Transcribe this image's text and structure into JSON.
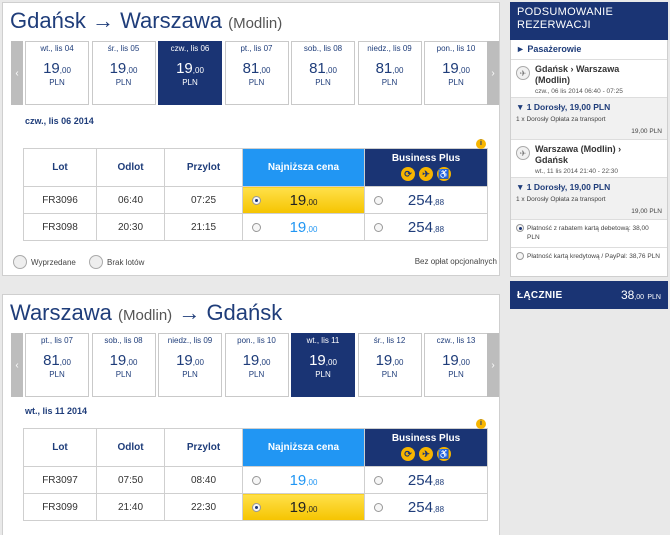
{
  "outbound": {
    "title_from": "Gdańsk",
    "arrow": "→",
    "title_to": "Warszawa",
    "title_sub": "(Modlin)",
    "nav_prev": "‹",
    "nav_next": "›",
    "dates": [
      {
        "label": "wt., lis 04",
        "int": "19",
        "dec": ",00",
        "currency": "PLN",
        "selected": false
      },
      {
        "label": "śr., lis 05",
        "int": "19",
        "dec": ",00",
        "currency": "PLN",
        "selected": false
      },
      {
        "label": "czw., lis 06",
        "int": "19",
        "dec": ",00",
        "currency": "PLN",
        "selected": true
      },
      {
        "label": "pt., lis 07",
        "int": "81",
        "dec": ",00",
        "currency": "PLN",
        "selected": false
      },
      {
        "label": "sob., lis 08",
        "int": "81",
        "dec": ",00",
        "currency": "PLN",
        "selected": false
      },
      {
        "label": "niedz., lis 09",
        "int": "81",
        "dec": ",00",
        "currency": "PLN",
        "selected": false
      },
      {
        "label": "pon., lis 10",
        "int": "19",
        "dec": ",00",
        "currency": "PLN",
        "selected": false
      }
    ],
    "selected_date": "czw., lis 06 2014",
    "headers": {
      "flight": "Lot",
      "dep": "Odlot",
      "arr": "Przylot",
      "lowest": "Najniższa cena",
      "bplus": "Business Plus",
      "info": "i"
    },
    "bplus_icons": [
      "⟳",
      "✈",
      "♿"
    ],
    "rows": [
      {
        "flight": "FR3096",
        "dep": "06:40",
        "arr": "07:25",
        "low_int": "19",
        "low_dec": ",00",
        "bp_int": "254",
        "bp_dec": ",88",
        "low_selected": true
      },
      {
        "flight": "FR3098",
        "dep": "20:30",
        "arr": "21:15",
        "low_int": "19",
        "low_dec": ",00",
        "bp_int": "254",
        "bp_dec": ",88",
        "low_selected": false
      }
    ],
    "legend": {
      "sold_out": "Wyprzedane",
      "no_flights": "Brak lotów",
      "no_fees": "Bez opłat opcjonalnych"
    }
  },
  "inbound": {
    "title_from": "Warszawa",
    "title_sub": "(Modlin)",
    "arrow": "→",
    "title_to": "Gdańsk",
    "nav_prev": "‹",
    "nav_next": "›",
    "dates": [
      {
        "label": "pt., lis 07",
        "int": "81",
        "dec": ",00",
        "currency": "PLN",
        "selected": false
      },
      {
        "label": "sob., lis 08",
        "int": "19",
        "dec": ",00",
        "currency": "PLN",
        "selected": false
      },
      {
        "label": "niedz., lis 09",
        "int": "19",
        "dec": ",00",
        "currency": "PLN",
        "selected": false
      },
      {
        "label": "pon., lis 10",
        "int": "19",
        "dec": ",00",
        "currency": "PLN",
        "selected": false
      },
      {
        "label": "wt., lis 11",
        "int": "19",
        "dec": ",00",
        "currency": "PLN",
        "selected": true
      },
      {
        "label": "śr., lis 12",
        "int": "19",
        "dec": ",00",
        "currency": "PLN",
        "selected": false
      },
      {
        "label": "czw., lis 13",
        "int": "19",
        "dec": ",00",
        "currency": "PLN",
        "selected": false
      }
    ],
    "selected_date": "wt., lis 11 2014",
    "headers": {
      "flight": "Lot",
      "dep": "Odlot",
      "arr": "Przylot",
      "lowest": "Najniższa cena",
      "bplus": "Business Plus",
      "info": "i"
    },
    "bplus_icons": [
      "⟳",
      "✈",
      "♿"
    ],
    "rows": [
      {
        "flight": "FR3097",
        "dep": "07:50",
        "arr": "08:40",
        "low_int": "19",
        "low_dec": ",00",
        "bp_int": "254",
        "bp_dec": ",88",
        "low_selected": false
      },
      {
        "flight": "FR3099",
        "dep": "21:40",
        "arr": "22:30",
        "low_int": "19",
        "low_dec": ",00",
        "bp_int": "254",
        "bp_dec": ",88",
        "low_selected": true
      }
    ]
  },
  "summary": {
    "title_line1": "PODSUMOWANIE",
    "title_line2": "REZERWACJI",
    "passengers": "► Pasażerowie",
    "leg1": {
      "route_line1": "Gdańsk   › Warszawa",
      "route_line2": "(Modlin)",
      "time": "czw., 06 lis 2014 06:40 - 07:25",
      "pax_head": "▼ 1 Dorosły, 19,00 PLN",
      "pax_detail": "1 x Dorosły Opłata za transport",
      "pax_amount": "19,00 PLN"
    },
    "leg2": {
      "route_line1": "Warszawa (Modlin)   ›",
      "route_line2": "Gdańsk",
      "time": "wt., 11 lis 2014 21:40 - 22:30",
      "pax_head": "▼ 1 Dorosły, 19,00 PLN",
      "pax_detail": "1 x Dorosły Opłata za transport",
      "pax_amount": "19,00 PLN"
    },
    "pay_debit": "Płatność z rabatem kartą debetową: 38,00 PLN",
    "pay_credit": "Płatność kartą kredytową / PayPal: 38,76 PLN",
    "total_label": "ŁĄCZNIE",
    "total_int": "38",
    "total_dec": ",00",
    "total_cur": "PLN"
  },
  "colors": {
    "brand": "#1a3474",
    "accent": "#2196f3",
    "highlight": "#f5c400"
  }
}
